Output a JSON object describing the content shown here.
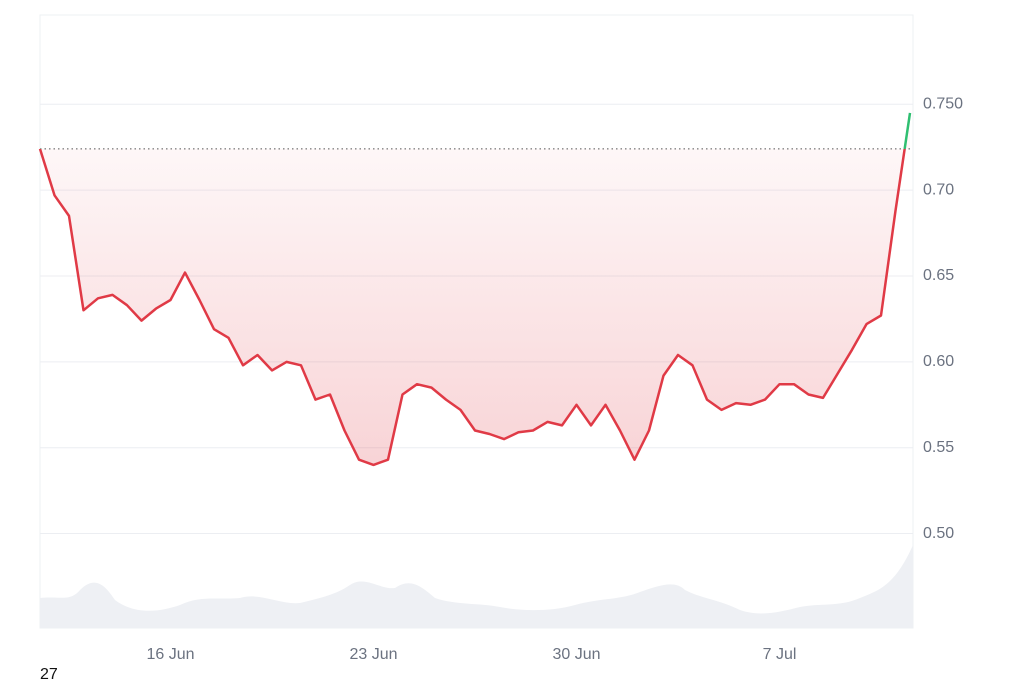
{
  "chart_data": {
    "type": "line",
    "categories": [
      null,
      null,
      null,
      null,
      null,
      null,
      null,
      null,
      null,
      "16 Jun",
      null,
      null,
      null,
      null,
      null,
      null,
      null,
      null,
      null,
      null,
      null,
      null,
      null,
      "23 Jun",
      null,
      null,
      null,
      null,
      null,
      null,
      null,
      null,
      null,
      null,
      null,
      null,
      null,
      "30 Jun",
      null,
      null,
      null,
      null,
      null,
      null,
      null,
      null,
      null,
      null,
      null,
      null,
      null,
      "7 Jul",
      null,
      null,
      null,
      null,
      null,
      null,
      null,
      null,
      null
    ],
    "series": [
      {
        "color": "#e03a46",
        "up_color": "#2fbf71",
        "values": [
          0.724,
          0.697,
          0.685,
          0.63,
          0.637,
          0.639,
          0.633,
          0.624,
          0.631,
          0.636,
          0.652,
          0.636,
          0.619,
          0.614,
          0.598,
          0.604,
          0.595,
          0.6,
          0.598,
          0.578,
          0.581,
          0.56,
          0.543,
          0.54,
          0.543,
          0.581,
          0.587,
          0.585,
          0.578,
          0.572,
          0.56,
          0.558,
          0.555,
          0.559,
          0.56,
          0.565,
          0.563,
          0.575,
          0.563,
          0.575,
          0.56,
          0.543,
          0.56,
          0.592,
          0.604,
          0.598,
          0.578,
          0.572,
          0.576,
          0.575,
          0.578,
          0.587,
          0.587,
          0.581,
          0.579,
          0.593,
          0.607,
          0.622,
          0.627,
          0.688,
          0.745
        ]
      }
    ],
    "reference_value": 0.724,
    "ylim": [
      0.445,
      0.802
    ],
    "yticks": [
      {
        "value": 0.5,
        "label": "0.50"
      },
      {
        "value": 0.55,
        "label": "0.55"
      },
      {
        "value": 0.6,
        "label": "0.60"
      },
      {
        "value": 0.65,
        "label": "0.65"
      },
      {
        "value": 0.7,
        "label": "0.70"
      },
      {
        "value": 0.75,
        "label": "0.750"
      }
    ],
    "grid": true
  },
  "footer_text": "27"
}
